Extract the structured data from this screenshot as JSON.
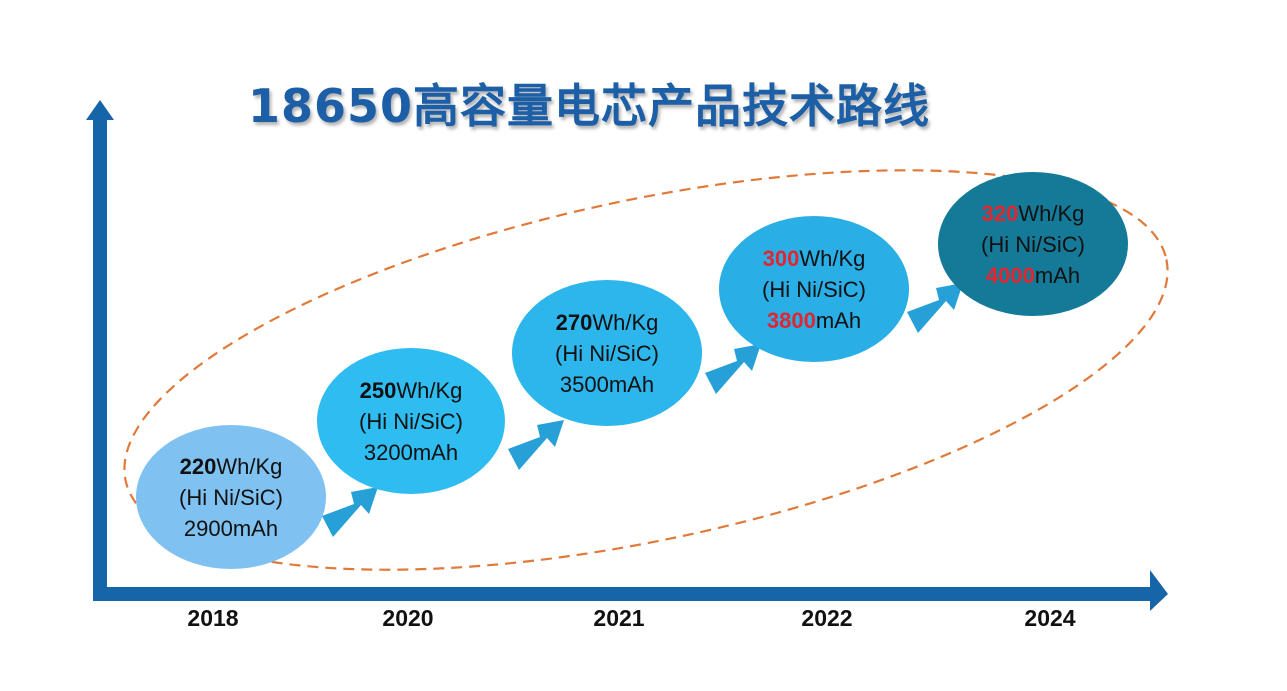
{
  "title": "18650高容量电芯产品技术路线",
  "colors": {
    "axis": "#1565a8",
    "title": "#1c5fa6",
    "dashed_ellipse": "#e07a3a",
    "arrow": "#27a0d8",
    "highlight_red": "#e2252f"
  },
  "years": [
    "2018",
    "2020",
    "2021",
    "2022",
    "2024"
  ],
  "nodes": [
    {
      "energy_value": "220",
      "energy_unit": "Wh/Kg",
      "material": "(Hi Ni/SiC)",
      "capacity_red": "",
      "capacity_rest": "2900mAh",
      "fill": "#7fc1f0"
    },
    {
      "energy_value": "250",
      "energy_unit": "Wh/Kg",
      "material": "(Hi Ni/SiC)",
      "capacity_red": "",
      "capacity_rest": "3200mAh",
      "fill": "#2fbcf0"
    },
    {
      "energy_value": "270",
      "energy_unit": "Wh/Kg",
      "material": "(Hi Ni/SiC)",
      "capacity_red": "",
      "capacity_rest": "3500mAh",
      "fill": "#2db6ec"
    },
    {
      "energy_value": "300",
      "energy_unit": "Wh/Kg",
      "material": "(Hi Ni/SiC)",
      "capacity_red": "3800",
      "capacity_rest": "mAh",
      "fill": "#29aee6"
    },
    {
      "energy_value": "320",
      "energy_unit": "Wh/Kg",
      "material": "(Hi Ni/SiC)",
      "capacity_red": "4000",
      "capacity_rest": "mAh",
      "fill": "#157a98"
    }
  ]
}
